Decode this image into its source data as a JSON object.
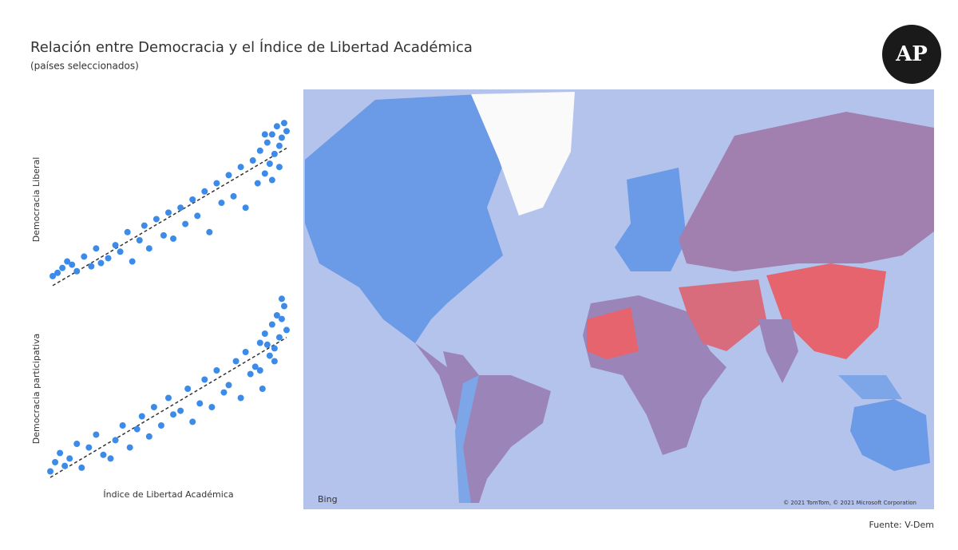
{
  "header": {
    "title": "Relación entre Democracia y el Índice de Libertad Académica",
    "subtitle": "(países seleccionados)",
    "logo": "AP"
  },
  "chart_data": [
    {
      "type": "scatter",
      "y_label": "Democracia Liberal",
      "color": "#3d8be8",
      "trendline": true,
      "xlim": [
        0,
        1
      ],
      "ylim": [
        0,
        1
      ],
      "x": [
        0.02,
        0.04,
        0.06,
        0.08,
        0.1,
        0.12,
        0.15,
        0.18,
        0.2,
        0.22,
        0.25,
        0.28,
        0.3,
        0.33,
        0.35,
        0.38,
        0.4,
        0.42,
        0.45,
        0.48,
        0.5,
        0.52,
        0.55,
        0.57,
        0.6,
        0.62,
        0.65,
        0.67,
        0.7,
        0.72,
        0.75,
        0.77,
        0.8,
        0.82,
        0.85,
        0.87,
        0.88,
        0.9,
        0.91,
        0.92,
        0.93,
        0.94,
        0.95,
        0.96,
        0.97,
        0.98,
        0.99,
        0.96,
        0.93,
        0.9
      ],
      "values": [
        0.03,
        0.05,
        0.08,
        0.12,
        0.1,
        0.06,
        0.15,
        0.09,
        0.2,
        0.11,
        0.14,
        0.22,
        0.18,
        0.3,
        0.12,
        0.25,
        0.34,
        0.2,
        0.38,
        0.28,
        0.42,
        0.26,
        0.45,
        0.35,
        0.5,
        0.4,
        0.55,
        0.3,
        0.6,
        0.48,
        0.65,
        0.52,
        0.7,
        0.45,
        0.74,
        0.6,
        0.8,
        0.66,
        0.85,
        0.72,
        0.9,
        0.78,
        0.95,
        0.83,
        0.88,
        0.97,
        0.92,
        0.7,
        0.62,
        0.9
      ]
    },
    {
      "type": "scatter",
      "y_label": "Democracia participativa",
      "x_label": "Índice de Libertad Académica",
      "color": "#3d8be8",
      "trendline": true,
      "xlim": [
        0,
        1
      ],
      "ylim": [
        0,
        1
      ],
      "x": [
        0.01,
        0.03,
        0.05,
        0.07,
        0.09,
        0.12,
        0.14,
        0.17,
        0.2,
        0.23,
        0.26,
        0.28,
        0.31,
        0.34,
        0.37,
        0.39,
        0.42,
        0.44,
        0.47,
        0.5,
        0.52,
        0.55,
        0.58,
        0.6,
        0.63,
        0.65,
        0.68,
        0.7,
        0.73,
        0.75,
        0.78,
        0.8,
        0.82,
        0.84,
        0.86,
        0.88,
        0.89,
        0.9,
        0.92,
        0.93,
        0.94,
        0.95,
        0.96,
        0.97,
        0.98,
        0.99,
        0.97,
        0.94,
        0.91,
        0.88
      ],
      "values": [
        0.05,
        0.1,
        0.15,
        0.08,
        0.12,
        0.2,
        0.07,
        0.18,
        0.25,
        0.14,
        0.12,
        0.22,
        0.3,
        0.18,
        0.28,
        0.35,
        0.24,
        0.4,
        0.3,
        0.45,
        0.36,
        0.38,
        0.5,
        0.32,
        0.42,
        0.55,
        0.4,
        0.6,
        0.48,
        0.52,
        0.65,
        0.45,
        0.7,
        0.58,
        0.62,
        0.75,
        0.5,
        0.8,
        0.68,
        0.85,
        0.72,
        0.9,
        0.78,
        0.88,
        0.95,
        0.82,
        0.99,
        0.65,
        0.74,
        0.6
      ]
    }
  ],
  "map": {
    "attribution": "Bing",
    "copyright": "© 2021 TomTom, © 2021 Microsoft Corporation"
  },
  "footer": {
    "source": "Fuente: V-Dem"
  }
}
